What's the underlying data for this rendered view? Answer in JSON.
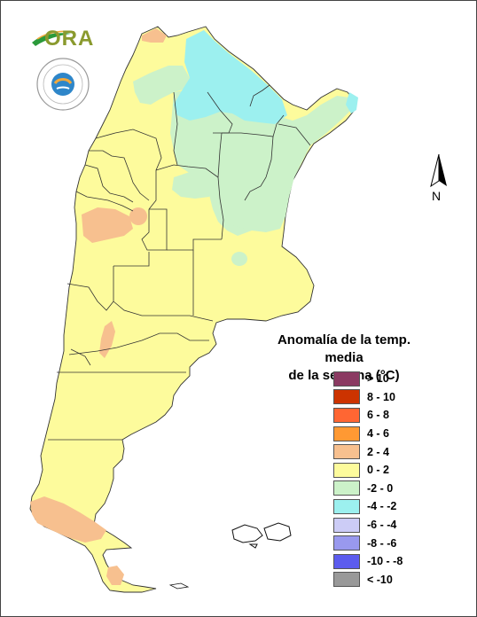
{
  "logo": {
    "name": "ORA",
    "seal_text": "SERVICIO METEOROLOGICO NACIONAL",
    "seal_country": "ARGENTINA"
  },
  "north_label": "N",
  "legend": {
    "title_line1": "Anomalía de la temp. media",
    "title_line2": "de la semana (°C)",
    "items": [
      {
        "label": "> 10",
        "color": "#8b3a62"
      },
      {
        "label": "8 - 10",
        "color": "#cc3300"
      },
      {
        "label": "6 - 8",
        "color": "#ff6633"
      },
      {
        "label": "4 - 6",
        "color": "#ff9933"
      },
      {
        "label": "2 - 4",
        "color": "#f7c08f"
      },
      {
        "label": "0 - 2",
        "color": "#fdfb9c"
      },
      {
        "label": "-2 - 0",
        "color": "#ccf2c9"
      },
      {
        "label": "-4 - -2",
        "color": "#9cf0ef"
      },
      {
        "label": "-6 - -4",
        "color": "#ccccf6"
      },
      {
        "label": "-8 - -6",
        "color": "#9999ee"
      },
      {
        "label": "-10 - -8",
        "color": "#5c5cee"
      },
      {
        "label": "< -10",
        "color": "#999999"
      }
    ]
  }
}
